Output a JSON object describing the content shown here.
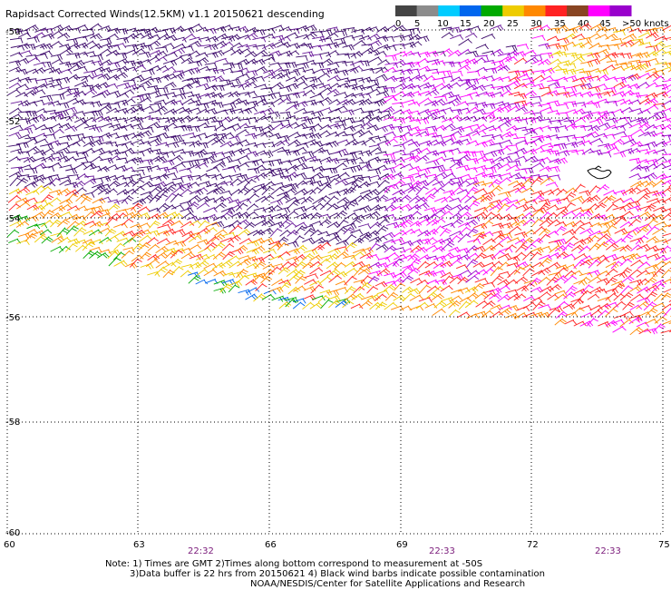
{
  "title": "Rapidsact Corrected Winds(12.5KM) v1.1 20150621 descending",
  "legend": {
    "labels": [
      "0",
      "5",
      "10",
      "15",
      "20",
      "25",
      "30",
      "35",
      "40",
      "45",
      ">50 knots"
    ],
    "colors": [
      "#444444",
      "#8c8c8c",
      "#00ccff",
      "#0066ee",
      "#00aa00",
      "#eecc00",
      "#ff8800",
      "#ff2222",
      "#884422",
      "#ff00ff",
      "#9900cc"
    ]
  },
  "axes": {
    "lat_labels": [
      "-50",
      "-52",
      "-54",
      "-56",
      "-58",
      "-60"
    ],
    "lon_labels": [
      "60",
      "63",
      "66",
      "69",
      "72",
      "75"
    ]
  },
  "times": [
    "22:32",
    "22:33",
    "22:33"
  ],
  "notes": [
    "Note: 1) Times are GMT 2)Times along bottom correspond to measurement at -50S",
    "3)Data buffer is 22 hrs from 20150621 4) Black wind barbs indicate possible contamination",
    "NOAA/NESDIS/Center for Satellite Applications and Research"
  ]
}
